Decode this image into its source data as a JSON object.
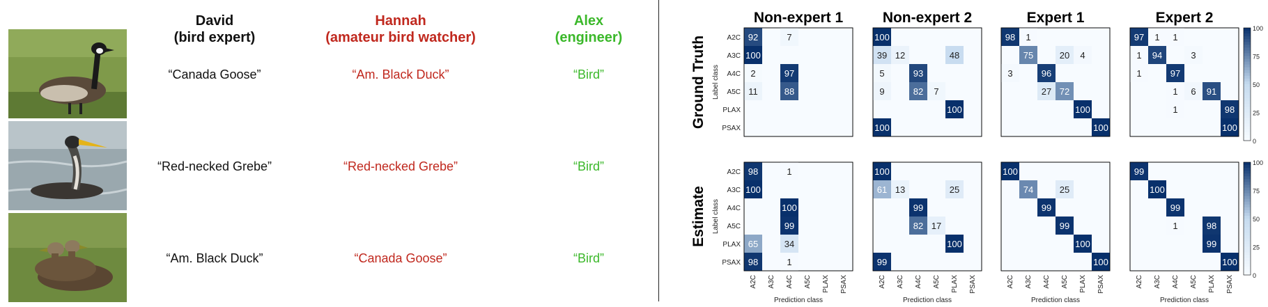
{
  "annotators": [
    {
      "name": "David",
      "role": "(bird expert)",
      "color": "#111111",
      "labels": [
        "“Canada Goose”",
        "“Red-necked Grebe”",
        "“Am. Black Duck”"
      ]
    },
    {
      "name": "Hannah",
      "role": "(amateur bird watcher)",
      "color": "#c0281e",
      "labels": [
        "“Am. Black Duck”",
        "“Red-necked Grebe”",
        "“Canada Goose”"
      ]
    },
    {
      "name": "Alex",
      "role": "(engineer)",
      "color": "#3bb82a",
      "labels": [
        "“Bird”",
        "“Bird”",
        "“Bird”"
      ]
    }
  ],
  "photos": [
    {
      "name": "canada-goose-photo",
      "subject": "canada goose on grass"
    },
    {
      "name": "red-necked-grebe-photo",
      "subject": "red-necked grebe on water"
    },
    {
      "name": "black-duck-photo",
      "subject": "two ducks on grass"
    }
  ],
  "chart_data": {
    "type": "heatmap",
    "column_titles": [
      "Non-expert 1",
      "Non-expert 2",
      "Expert 1",
      "Expert 2"
    ],
    "row_titles": [
      "Ground Truth",
      "Estimate"
    ],
    "ylabel": "Label class",
    "xlabel": "Prediction class",
    "classes": [
      "A2C",
      "A3C",
      "A4C",
      "A5C",
      "PLAX",
      "PSAX"
    ],
    "colorbar_ticks": [
      0,
      25,
      50,
      75,
      100
    ],
    "colorbar_top_label": "100",
    "color_low": "#f7fbff",
    "color_high": "#08306b",
    "matrices": [
      [
        [
          [
            92,
            0,
            7,
            0,
            0,
            0
          ],
          [
            100,
            0,
            0,
            0,
            0,
            0
          ],
          [
            2,
            0,
            97,
            0,
            0,
            0
          ],
          [
            11,
            0,
            88,
            0,
            0,
            0
          ],
          [
            0,
            0,
            0,
            0,
            0,
            0
          ],
          [
            0,
            0,
            0,
            0,
            0,
            0
          ]
        ],
        [
          [
            100,
            0,
            0,
            0,
            0,
            0
          ],
          [
            39,
            12,
            0,
            0,
            48,
            0
          ],
          [
            5,
            0,
            93,
            0,
            0,
            0
          ],
          [
            9,
            0,
            82,
            7,
            0,
            0
          ],
          [
            0,
            0,
            0,
            0,
            100,
            0
          ],
          [
            100,
            0,
            0,
            0,
            0,
            0
          ]
        ],
        [
          [
            98,
            1,
            0,
            0,
            0,
            0
          ],
          [
            0,
            75,
            0,
            20,
            4,
            0
          ],
          [
            3,
            0,
            96,
            0,
            0,
            0
          ],
          [
            0,
            0,
            27,
            72,
            0,
            0
          ],
          [
            0,
            0,
            0,
            0,
            100,
            0
          ],
          [
            0,
            0,
            0,
            0,
            0,
            100
          ]
        ],
        [
          [
            97,
            1,
            1,
            0,
            0,
            0
          ],
          [
            1,
            94,
            0,
            3,
            0,
            0
          ],
          [
            1,
            0,
            97,
            0,
            0,
            0
          ],
          [
            0,
            0,
            1,
            6,
            91,
            0
          ],
          [
            0,
            0,
            1,
            0,
            0,
            98
          ],
          [
            0,
            0,
            0,
            0,
            0,
            100
          ]
        ]
      ],
      [
        [
          [
            98,
            0,
            1,
            0,
            0,
            0
          ],
          [
            100,
            0,
            0,
            0,
            0,
            0
          ],
          [
            0,
            0,
            100,
            0,
            0,
            0
          ],
          [
            0,
            0,
            99,
            0,
            0,
            0
          ],
          [
            65,
            0,
            34,
            0,
            0,
            0
          ],
          [
            98,
            0,
            1,
            0,
            0,
            0
          ]
        ],
        [
          [
            100,
            0,
            0,
            0,
            0,
            0
          ],
          [
            61,
            13,
            0,
            0,
            25,
            0
          ],
          [
            0,
            0,
            99,
            0,
            0,
            0
          ],
          [
            0,
            0,
            82,
            17,
            0,
            0
          ],
          [
            0,
            0,
            0,
            0,
            100,
            0
          ],
          [
            99,
            0,
            0,
            0,
            0,
            0
          ]
        ],
        [
          [
            100,
            0,
            0,
            0,
            0,
            0
          ],
          [
            0,
            74,
            0,
            25,
            0,
            0
          ],
          [
            0,
            0,
            99,
            0,
            0,
            0
          ],
          [
            0,
            0,
            0,
            99,
            0,
            0
          ],
          [
            0,
            0,
            0,
            0,
            100,
            0
          ],
          [
            0,
            0,
            0,
            0,
            0,
            100
          ]
        ],
        [
          [
            99,
            0,
            0,
            0,
            0,
            0
          ],
          [
            0,
            100,
            0,
            0,
            0,
            0
          ],
          [
            0,
            0,
            99,
            0,
            0,
            0
          ],
          [
            0,
            0,
            1,
            0,
            98,
            0
          ],
          [
            0,
            0,
            0,
            0,
            99,
            0
          ],
          [
            0,
            0,
            0,
            0,
            0,
            100
          ]
        ]
      ]
    ]
  }
}
